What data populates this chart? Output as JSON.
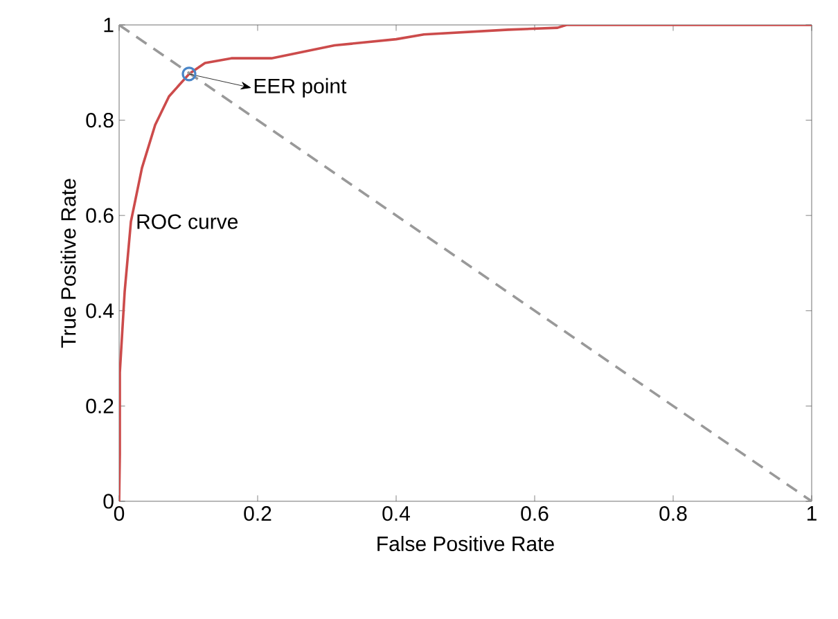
{
  "chart_data": {
    "type": "line",
    "xlabel": "False Positive Rate",
    "ylabel": "True Positive Rate",
    "xlim": [
      0,
      1
    ],
    "ylim": [
      0,
      1
    ],
    "xticks": [
      0,
      0.2,
      0.4,
      0.6,
      0.8,
      1
    ],
    "yticks": [
      0,
      0.2,
      0.4,
      0.6,
      0.8,
      1
    ],
    "grid": false,
    "legend": false,
    "series": [
      {
        "name": "ROC curve",
        "color": "#cc4b4b",
        "line_style": "solid",
        "marker": "none",
        "x": [
          0,
          0.001,
          0.001,
          0.008,
          0.017,
          0.033,
          0.052,
          0.072,
          0.101,
          0.124,
          0.162,
          0.22,
          0.311,
          0.4,
          0.44,
          0.562,
          0.633,
          0.646,
          1
        ],
        "values": [
          0,
          0.1,
          0.27,
          0.44,
          0.587,
          0.7,
          0.79,
          0.85,
          0.897,
          0.92,
          0.93,
          0.93,
          0.957,
          0.97,
          0.98,
          0.99,
          0.994,
          1,
          1
        ]
      },
      {
        "color": "#999999",
        "line_style": "dashed",
        "marker": "none",
        "x": [
          0,
          1
        ],
        "values": [
          1,
          0
        ]
      },
      {
        "name": "EER point",
        "type": "scatter",
        "color": "#4a86c8",
        "marker": "circle",
        "x": [
          0.101
        ],
        "values": [
          0.897
        ]
      }
    ]
  }
}
